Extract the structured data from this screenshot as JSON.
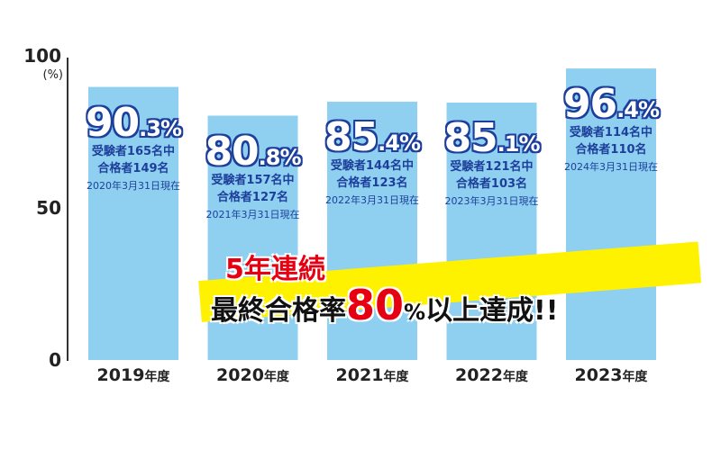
{
  "chart_data": {
    "type": "bar",
    "categories": [
      "2019",
      "2020",
      "2021",
      "2022",
      "2023"
    ],
    "category_suffix": "年度",
    "values": [
      90.3,
      80.8,
      85.4,
      85.1,
      96.4
    ],
    "rate_labels": [
      {
        "int": "90",
        "dec": ".3%"
      },
      {
        "int": "80",
        "dec": ".8%"
      },
      {
        "int": "85",
        "dec": ".4%"
      },
      {
        "int": "85",
        "dec": ".1%"
      },
      {
        "int": "96",
        "dec": ".4%"
      }
    ],
    "examinees": [
      "受験者165名中",
      "受験者157名中",
      "受験者144名中",
      "受験者121名中",
      "受験者114名中"
    ],
    "passers": [
      "合格者149名",
      "合格者127名",
      "合格者123名",
      "合格者103名",
      "合格者110名"
    ],
    "as_of": [
      "2020年3月31日現在",
      "2021年3月31日現在",
      "2022年3月31日現在",
      "2023年3月31日現在",
      "2024年3月31日現在"
    ],
    "ylim": [
      0,
      100
    ],
    "yticks": [
      "100",
      "50",
      "0"
    ],
    "ylabel": "(%)",
    "bar_color": "#8fd0f0",
    "label_color": "#1d3f9b"
  },
  "banner": {
    "line1": "5年連続",
    "line2_a": "最終合格率",
    "line2_num": "80",
    "line2_pct": "%",
    "line2_b": "以上達成!!",
    "accent": "#e60012",
    "highlight": "#fff200"
  }
}
